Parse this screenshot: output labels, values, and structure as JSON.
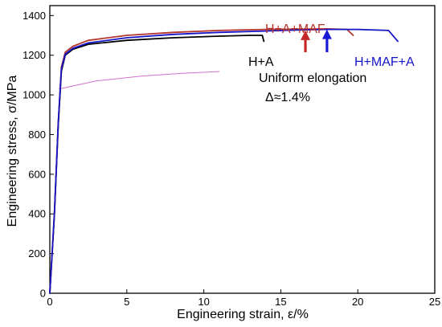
{
  "chart_data": {
    "type": "line",
    "xlabel": "Engineering strain, ε/%",
    "ylabel": "Engineering stress, σ/MPa",
    "xlim": [
      0,
      25
    ],
    "ylim": [
      0,
      1450
    ],
    "xticks": [
      0,
      5,
      10,
      15,
      20,
      25
    ],
    "yticks": [
      0,
      200,
      400,
      600,
      800,
      1000,
      1200,
      1400
    ],
    "grid": false,
    "series": [
      {
        "name": "H+A",
        "color": "#000000",
        "points": [
          [
            0,
            0
          ],
          [
            0.3,
            400
          ],
          [
            0.55,
            850
          ],
          [
            0.75,
            1120
          ],
          [
            1.0,
            1200
          ],
          [
            1.5,
            1230
          ],
          [
            2.5,
            1255
          ],
          [
            5,
            1275
          ],
          [
            8,
            1288
          ],
          [
            11,
            1296
          ],
          [
            13,
            1300
          ],
          [
            13.8,
            1300
          ],
          [
            13.9,
            1270
          ]
        ]
      },
      {
        "name": "H+A+MAF",
        "color": "#b5352d",
        "points": [
          [
            0,
            0
          ],
          [
            0.3,
            400
          ],
          [
            0.55,
            860
          ],
          [
            0.75,
            1140
          ],
          [
            1.0,
            1215
          ],
          [
            1.5,
            1245
          ],
          [
            2.5,
            1275
          ],
          [
            5,
            1300
          ],
          [
            8,
            1315
          ],
          [
            11,
            1325
          ],
          [
            14,
            1330
          ],
          [
            16.6,
            1332
          ],
          [
            18,
            1333
          ],
          [
            19.3,
            1330
          ],
          [
            19.7,
            1300
          ]
        ]
      },
      {
        "name": "H+MAF+A",
        "color": "#1515c8",
        "points": [
          [
            0,
            0
          ],
          [
            0.3,
            400
          ],
          [
            0.55,
            860
          ],
          [
            0.75,
            1130
          ],
          [
            1.0,
            1205
          ],
          [
            1.5,
            1235
          ],
          [
            2.5,
            1262
          ],
          [
            5,
            1288
          ],
          [
            8,
            1305
          ],
          [
            11,
            1315
          ],
          [
            14,
            1322
          ],
          [
            16,
            1327
          ],
          [
            18,
            1330
          ],
          [
            20,
            1330
          ],
          [
            22,
            1325
          ],
          [
            22.6,
            1270
          ]
        ]
      },
      {
        "name": "",
        "color": "#d070d0",
        "points": [
          [
            0.6,
            1030
          ],
          [
            3,
            1070
          ],
          [
            6,
            1095
          ],
          [
            8.5,
            1108
          ],
          [
            11,
            1118
          ]
        ]
      }
    ],
    "annotations": {
      "uniform_elongation": "Uniform elongation",
      "delta": "Δ≈1.4%",
      "arrows": [
        {
          "x": 16.6,
          "y_top": 1325,
          "y_bottom": 1215,
          "color": "#c62828"
        },
        {
          "x": 18.0,
          "y_top": 1330,
          "y_bottom": 1215,
          "color": "#1a1ad6"
        }
      ]
    }
  }
}
